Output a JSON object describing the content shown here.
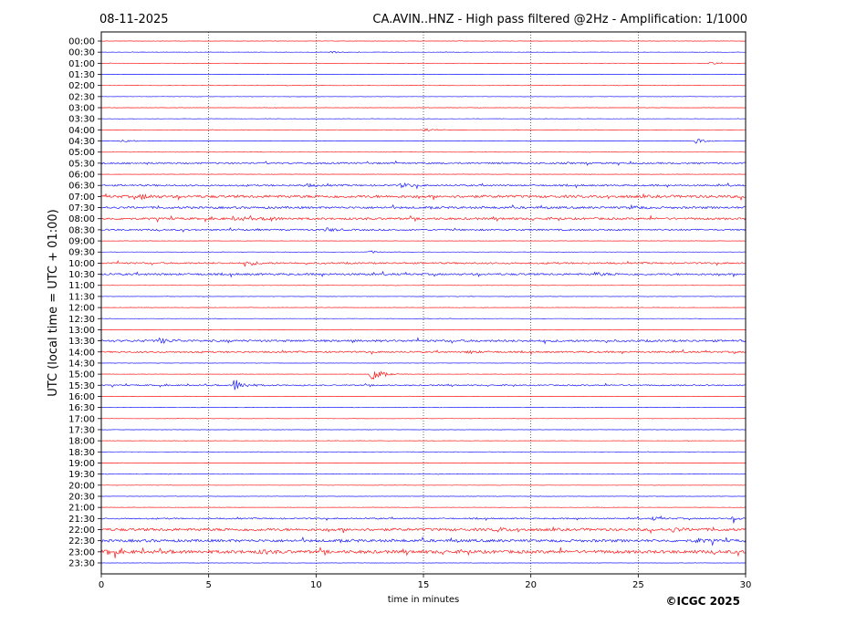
{
  "chart_data": {
    "type": "line",
    "date": "08-11-2025",
    "title": "CA.AVIN..HNZ - High pass filtered @2Hz - Amplification: 1/1000",
    "xlabel": "time in minutes",
    "ylabel": "UTC (local time = UTC + 01:00)",
    "credit": "©ICGC 2025",
    "xlim": [
      0,
      30
    ],
    "x_ticks": [
      0,
      5,
      10,
      15,
      20,
      25,
      30
    ],
    "x_tick_labels": [
      "0",
      "5",
      "10",
      "15",
      "20",
      "25",
      "30"
    ],
    "grid": "vertical dotted at x ticks",
    "row_labels": [
      "00:00",
      "00:30",
      "01:00",
      "01:30",
      "02:00",
      "02:30",
      "03:00",
      "03:30",
      "04:00",
      "04:30",
      "05:00",
      "05:30",
      "06:00",
      "06:30",
      "07:00",
      "07:30",
      "08:00",
      "08:30",
      "09:00",
      "09:30",
      "10:00",
      "10:30",
      "11:00",
      "11:30",
      "12:00",
      "12:30",
      "13:00",
      "13:30",
      "14:00",
      "14:30",
      "15:00",
      "15:30",
      "16:00",
      "16:30",
      "17:00",
      "17:30",
      "18:00",
      "18:30",
      "19:00",
      "19:30",
      "20:00",
      "20:30",
      "21:00",
      "21:30",
      "22:00",
      "22:30",
      "23:00",
      "23:30"
    ],
    "row_colors": [
      "#ff0000",
      "#0000ff"
    ],
    "events": [
      {
        "row": "00:30",
        "minute": 10.7,
        "amp": 0.25
      },
      {
        "row": "01:00",
        "minute": 28.3,
        "amp": 0.3
      },
      {
        "row": "04:00",
        "minute": 15.0,
        "amp": 0.5
      },
      {
        "row": "04:30",
        "minute": 1.0,
        "amp": 0.45
      },
      {
        "row": "04:30",
        "minute": 27.7,
        "amp": 0.5
      },
      {
        "row": "06:30",
        "minute": 9.5,
        "amp": 0.3
      },
      {
        "row": "06:30",
        "minute": 14.0,
        "amp": 0.45
      },
      {
        "row": "07:00",
        "minute": 1.9,
        "amp": 0.4
      },
      {
        "row": "07:30",
        "minute": 24.7,
        "amp": 0.35
      },
      {
        "row": "08:00",
        "minute": 6.3,
        "amp": 0.45
      },
      {
        "row": "08:00",
        "minute": 7.7,
        "amp": 0.45
      },
      {
        "row": "08:30",
        "minute": 10.5,
        "amp": 0.35
      },
      {
        "row": "09:30",
        "minute": 12.5,
        "amp": 0.3
      },
      {
        "row": "10:00",
        "minute": 6.8,
        "amp": 0.5
      },
      {
        "row": "10:30",
        "minute": 23.0,
        "amp": 0.3
      },
      {
        "row": "13:30",
        "minute": 2.7,
        "amp": 0.5
      },
      {
        "row": "14:00",
        "minute": 17.1,
        "amp": 0.3
      },
      {
        "row": "15:00",
        "minute": 12.6,
        "amp": 1.7
      },
      {
        "row": "15:30",
        "minute": 6.2,
        "amp": 1.4
      },
      {
        "row": "21:30",
        "minute": 25.7,
        "amp": 0.3
      },
      {
        "row": "21:30",
        "minute": 29.4,
        "amp": 0.3
      },
      {
        "row": "22:00",
        "minute": 18.4,
        "amp": 0.35
      },
      {
        "row": "22:00",
        "minute": 26.6,
        "amp": 0.35
      },
      {
        "row": "22:30",
        "minute": 27.7,
        "amp": 0.4
      },
      {
        "row": "23:00",
        "minute": 0.3,
        "amp": 0.4
      },
      {
        "row": "23:00",
        "minute": 7.5,
        "amp": 0.35
      }
    ],
    "noise_level": {
      "05:30": 0.15,
      "06:30": 0.15,
      "07:00": 0.25,
      "07:30": 0.2,
      "08:00": 0.2,
      "08:30": 0.15,
      "10:00": 0.15,
      "10:30": 0.18,
      "13:30": 0.2,
      "14:00": 0.15,
      "15:30": 0.12,
      "22:00": 0.25,
      "22:30": 0.25,
      "23:00": 0.3,
      "21:30": 0.12
    }
  }
}
